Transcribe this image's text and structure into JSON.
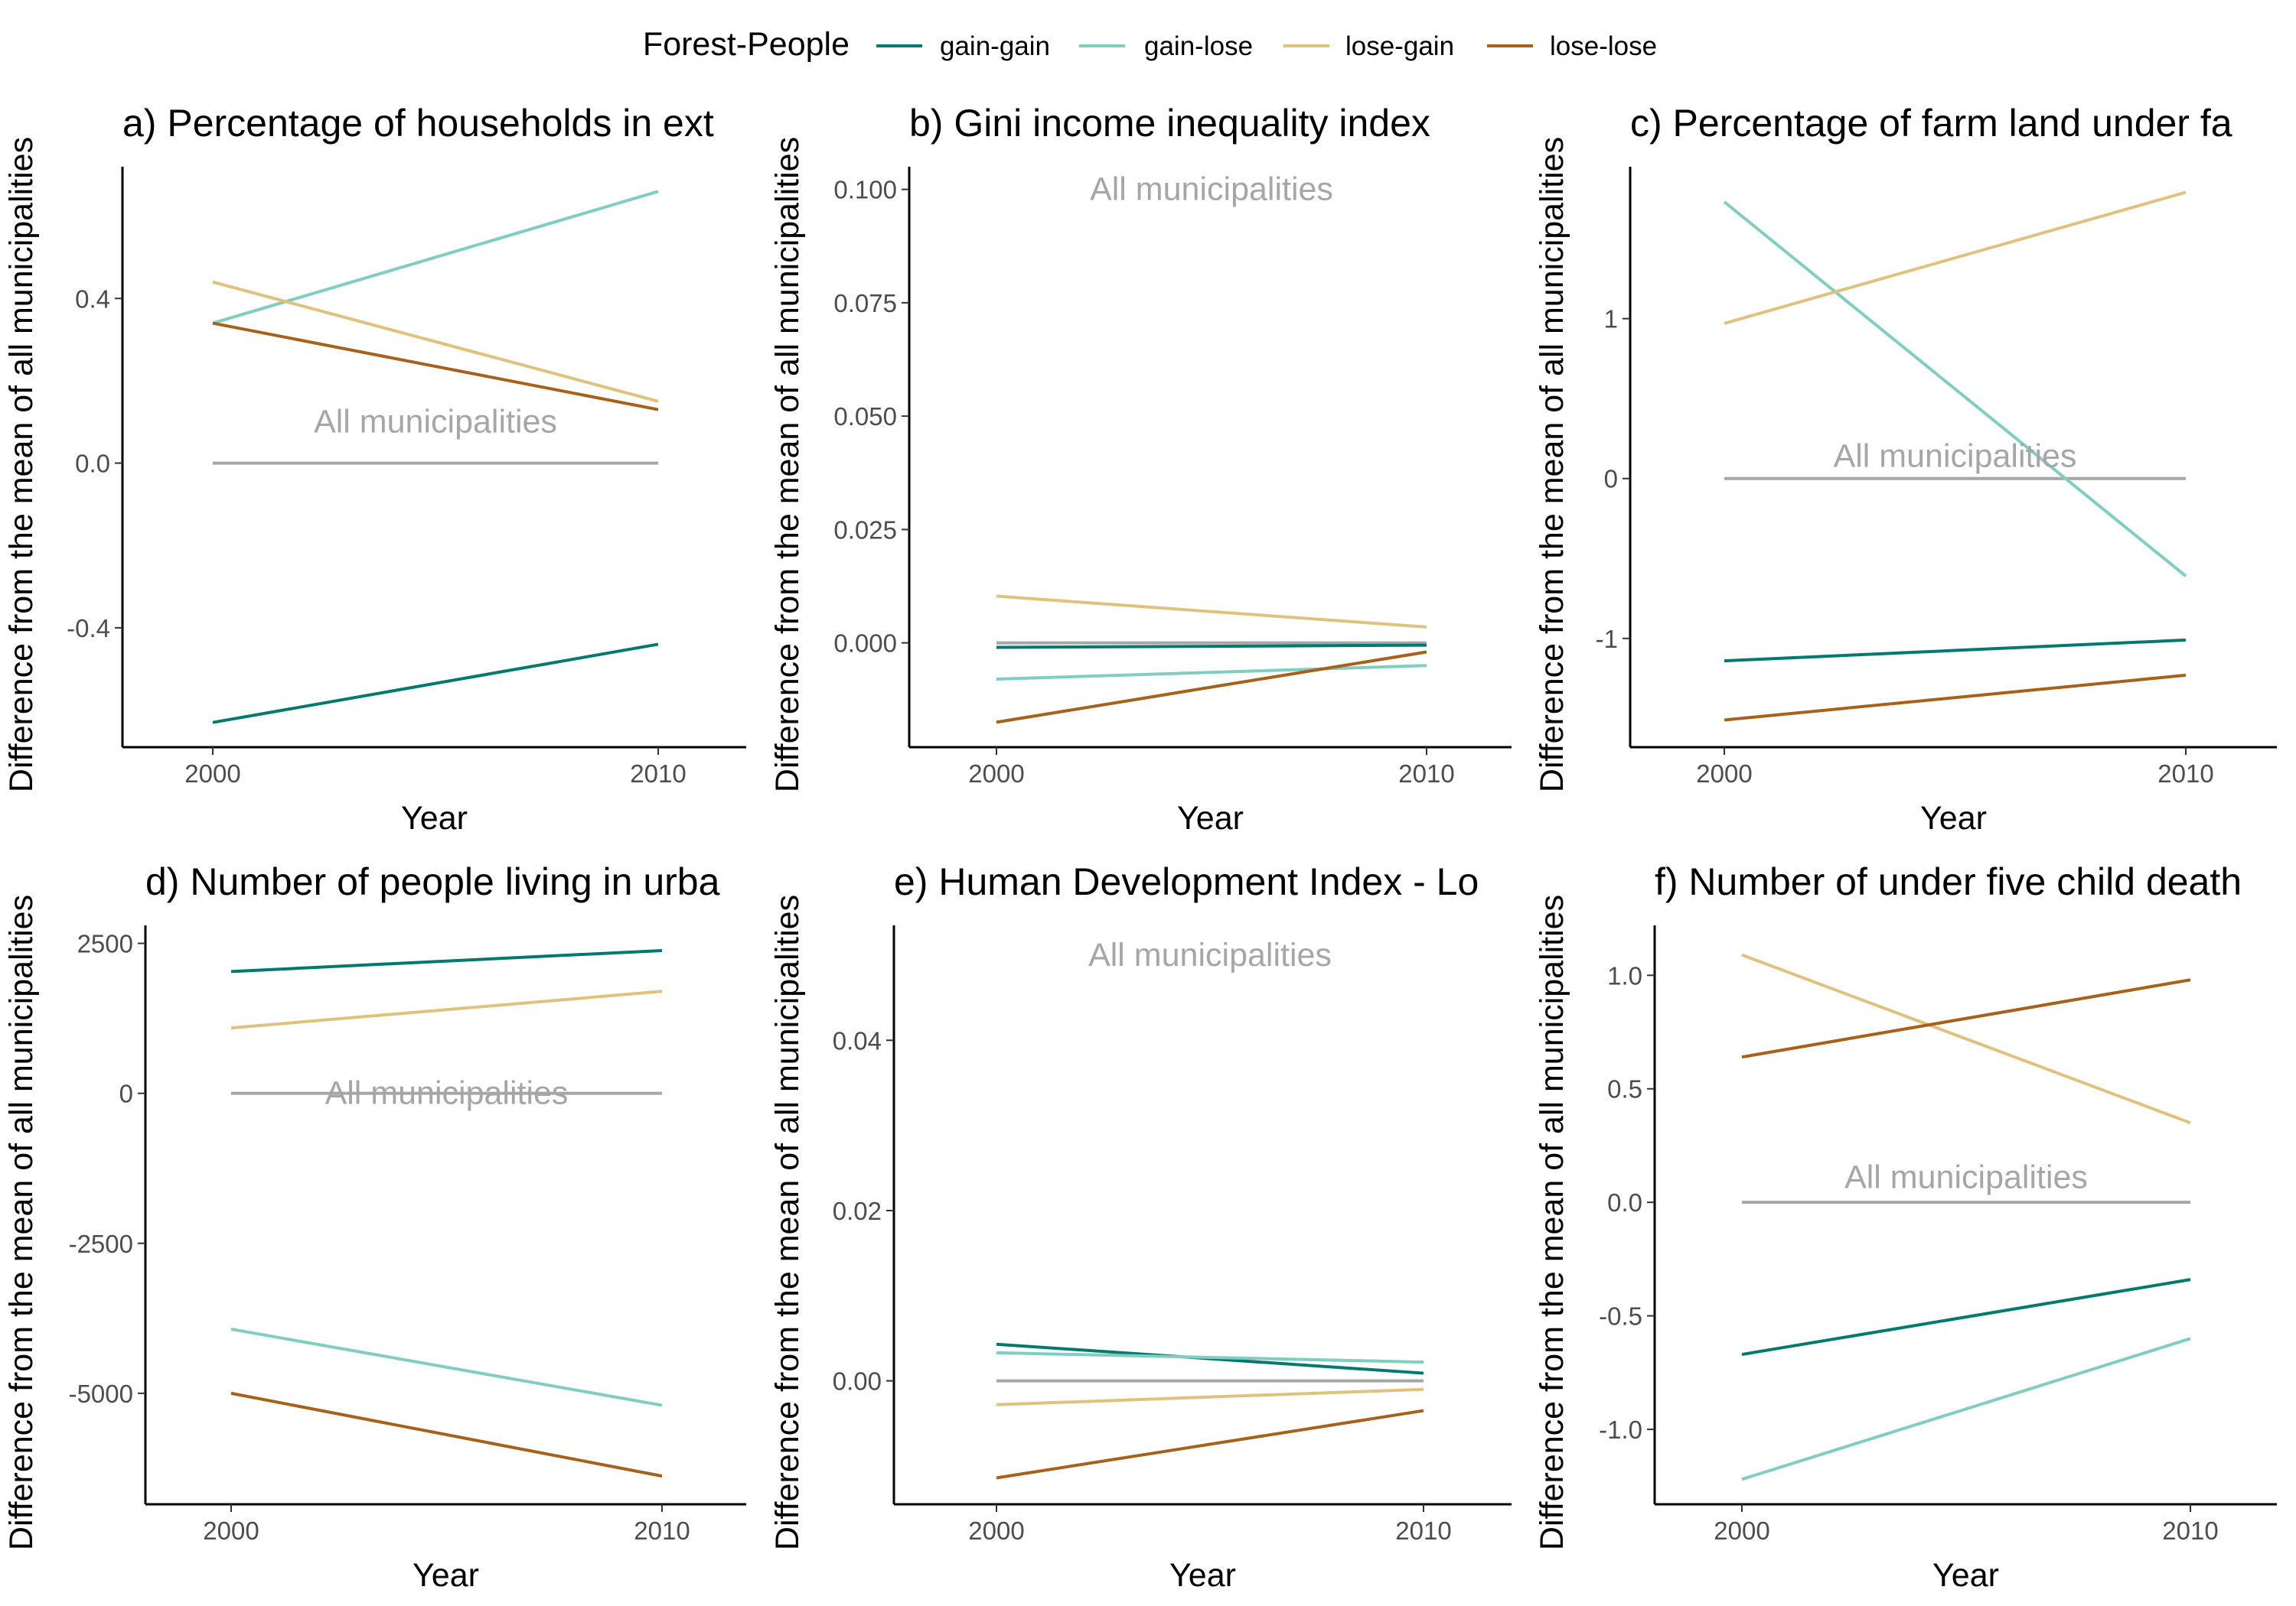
{
  "legend": {
    "title": "Forest-People",
    "items": [
      {
        "label": "gain-gain",
        "color": "#01796f"
      },
      {
        "label": "gain-lose",
        "color": "#80cdc1"
      },
      {
        "label": "lose-gain",
        "color": "#dfc27d"
      },
      {
        "label": "lose-lose",
        "color": "#a6611a"
      }
    ]
  },
  "reference_color": "#a6a6a6",
  "chart_data": [
    {
      "type": "line",
      "title": "a) Percentage of households in ext",
      "xlabel": "Year",
      "ylabel": "Difference from the mean of all municipalities",
      "x": [
        2000,
        2010
      ],
      "xticks": [
        "2000",
        "2010"
      ],
      "ylim": [
        -0.69,
        0.72
      ],
      "yticks": [
        -0.4,
        0.0,
        0.4
      ],
      "ytick_labels": [
        "-0.4",
        "0.0",
        "0.4"
      ],
      "reference": {
        "label": "All municipalities",
        "value": 0,
        "label_x": 2005,
        "label_y": 0.1
      },
      "series": [
        {
          "name": "gain-gain",
          "values": [
            -0.63,
            -0.44
          ]
        },
        {
          "name": "gain-lose",
          "values": [
            0.34,
            0.66
          ]
        },
        {
          "name": "lose-gain",
          "values": [
            0.44,
            0.15
          ]
        },
        {
          "name": "lose-lose",
          "values": [
            0.34,
            0.13
          ]
        }
      ]
    },
    {
      "type": "line",
      "title": "b) Gini income inequality index",
      "xlabel": "Year",
      "ylabel": "Difference from the mean of all municipalities",
      "x": [
        2000,
        2010
      ],
      "xticks": [
        "2000",
        "2010"
      ],
      "ylim": [
        -0.023,
        0.105
      ],
      "yticks": [
        0.0,
        0.025,
        0.05,
        0.075,
        0.1
      ],
      "ytick_labels": [
        "0.000",
        "0.025",
        "0.050",
        "0.075",
        "0.100"
      ],
      "reference": {
        "label": "All municipalities",
        "value": 0,
        "label_x": 2005,
        "label_y": 0.1
      },
      "series": [
        {
          "name": "gain-gain",
          "values": [
            -0.001,
            -0.0005
          ]
        },
        {
          "name": "gain-lose",
          "values": [
            -0.008,
            -0.005
          ]
        },
        {
          "name": "lose-gain",
          "values": [
            0.0103,
            0.0035
          ]
        },
        {
          "name": "lose-lose",
          "values": [
            -0.0175,
            -0.002
          ]
        }
      ]
    },
    {
      "type": "line",
      "title": "c) Percentage of farm land under fa",
      "xlabel": "Year",
      "ylabel": "Difference from the mean of all municipalities",
      "x": [
        2000,
        2010
      ],
      "xticks": [
        "2000",
        "2010"
      ],
      "ylim": [
        -1.68,
        1.95
      ],
      "yticks": [
        -1,
        0,
        1
      ],
      "ytick_labels": [
        "-1",
        "0",
        "1"
      ],
      "reference": {
        "label": "All municipalities",
        "value": 0,
        "label_x": 2005,
        "label_y": 0.14
      },
      "series": [
        {
          "name": "gain-gain",
          "values": [
            -1.14,
            -1.01
          ]
        },
        {
          "name": "gain-lose",
          "values": [
            1.73,
            -0.61
          ]
        },
        {
          "name": "lose-gain",
          "values": [
            0.97,
            1.79
          ]
        },
        {
          "name": "lose-lose",
          "values": [
            -1.51,
            -1.23
          ]
        }
      ]
    },
    {
      "type": "line",
      "title": "d) Number of people living in urba",
      "xlabel": "Year",
      "ylabel": "Difference from the mean of all municipalities",
      "x": [
        2000,
        2010
      ],
      "xticks": [
        "2000",
        "2010"
      ],
      "ylim": [
        -6850,
        2800
      ],
      "yticks": [
        -5000,
        -2500,
        0,
        2500
      ],
      "ytick_labels": [
        "-5000",
        "-2500",
        "0",
        "2500"
      ],
      "reference": {
        "label": "All municipalities",
        "value": 0,
        "label_x": 2005,
        "label_y": 0
      },
      "series": [
        {
          "name": "gain-gain",
          "values": [
            2030,
            2380
          ]
        },
        {
          "name": "gain-lose",
          "values": [
            -3930,
            -5200
          ]
        },
        {
          "name": "lose-gain",
          "values": [
            1090,
            1700
          ]
        },
        {
          "name": "lose-lose",
          "values": [
            -5000,
            -6380
          ]
        }
      ]
    },
    {
      "type": "line",
      "title": "e) Human Development Index - Lo",
      "xlabel": "Year",
      "ylabel": "Difference from the mean of all municipalities",
      "x": [
        2000,
        2010
      ],
      "xticks": [
        "2000",
        "2010"
      ],
      "ylim": [
        -0.0145,
        0.0535
      ],
      "yticks": [
        0.0,
        0.02,
        0.04
      ],
      "ytick_labels": [
        "0.00",
        "0.02",
        "0.04"
      ],
      "reference": {
        "label": "All municipalities",
        "value": 0,
        "label_x": 2005,
        "label_y": 0.05
      },
      "series": [
        {
          "name": "gain-gain",
          "values": [
            0.0043,
            0.0009
          ]
        },
        {
          "name": "gain-lose",
          "values": [
            0.0033,
            0.0022
          ]
        },
        {
          "name": "lose-gain",
          "values": [
            -0.0028,
            -0.001
          ]
        },
        {
          "name": "lose-lose",
          "values": [
            -0.0114,
            -0.0035
          ]
        }
      ]
    },
    {
      "type": "line",
      "title": "f) Number of under five child death",
      "xlabel": "Year",
      "ylabel": "Difference from the mean of all municipalities",
      "x": [
        2000,
        2010
      ],
      "xticks": [
        "2000",
        "2010"
      ],
      "ylim": [
        -1.33,
        1.22
      ],
      "yticks": [
        -1.0,
        -0.5,
        0.0,
        0.5,
        1.0
      ],
      "ytick_labels": [
        "-1.0",
        "-0.5",
        "0.0",
        "0.5",
        "1.0"
      ],
      "reference": {
        "label": "All municipalities",
        "value": 0,
        "label_x": 2005,
        "label_y": 0.11
      },
      "series": [
        {
          "name": "gain-gain",
          "values": [
            -0.67,
            -0.34
          ]
        },
        {
          "name": "gain-lose",
          "values": [
            -1.22,
            -0.6
          ]
        },
        {
          "name": "lose-gain",
          "values": [
            1.09,
            0.35
          ]
        },
        {
          "name": "lose-lose",
          "values": [
            0.64,
            0.98
          ]
        }
      ]
    }
  ]
}
